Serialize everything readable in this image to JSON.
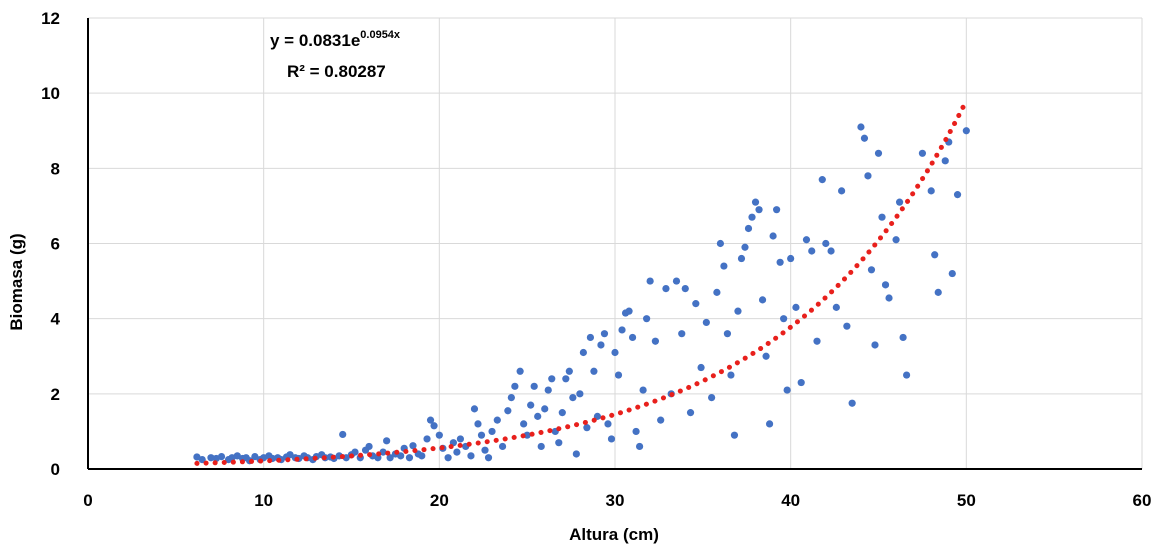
{
  "chart_data": {
    "type": "scatter",
    "xlabel": "Altura  (cm)",
    "ylabel": "Biomasa (g)",
    "xlim": [
      0,
      60
    ],
    "ylim": [
      0,
      12
    ],
    "x_ticks": [
      0,
      10,
      20,
      30,
      40,
      50,
      60
    ],
    "y_ticks": [
      0,
      2,
      4,
      6,
      8,
      10,
      12
    ],
    "grid": true,
    "legend": "none",
    "annotations": {
      "equation_prefix": "y = 0.0831e",
      "equation_exponent": "0.0954x",
      "r_squared": "R² = 0.80287"
    },
    "colors": {
      "points": "#4472c4",
      "trendline": "#e8201c",
      "grid": "#d9d9d9"
    },
    "trendline": {
      "type": "exponential",
      "a": 0.0831,
      "b": 0.0954,
      "x_range": [
        6.2,
        49.9
      ]
    },
    "series": [
      {
        "points": [
          [
            6.2,
            0.32
          ],
          [
            6.5,
            0.25
          ],
          [
            7,
            0.3
          ],
          [
            7.3,
            0.28
          ],
          [
            7.6,
            0.33
          ],
          [
            8,
            0.25
          ],
          [
            8.2,
            0.3
          ],
          [
            8.5,
            0.35
          ],
          [
            8.8,
            0.28
          ],
          [
            9,
            0.3
          ],
          [
            9.2,
            0.22
          ],
          [
            9.5,
            0.33
          ],
          [
            9.8,
            0.25
          ],
          [
            10,
            0.3
          ],
          [
            10.3,
            0.35
          ],
          [
            10.5,
            0.28
          ],
          [
            10.8,
            0.3
          ],
          [
            11,
            0.25
          ],
          [
            11.3,
            0.32
          ],
          [
            11.5,
            0.38
          ],
          [
            11.8,
            0.3
          ],
          [
            12,
            0.28
          ],
          [
            12.3,
            0.35
          ],
          [
            12.5,
            0.3
          ],
          [
            12.8,
            0.25
          ],
          [
            13,
            0.33
          ],
          [
            13.3,
            0.38
          ],
          [
            13.5,
            0.3
          ],
          [
            13.8,
            0.32
          ],
          [
            14,
            0.28
          ],
          [
            14.3,
            0.35
          ],
          [
            14.5,
            0.92
          ],
          [
            14.7,
            0.3
          ],
          [
            15,
            0.38
          ],
          [
            15.2,
            0.45
          ],
          [
            15.5,
            0.3
          ],
          [
            15.8,
            0.5
          ],
          [
            16,
            0.6
          ],
          [
            16.2,
            0.35
          ],
          [
            16.5,
            0.3
          ],
          [
            16.8,
            0.45
          ],
          [
            17,
            0.75
          ],
          [
            17.2,
            0.3
          ],
          [
            17.5,
            0.4
          ],
          [
            17.8,
            0.35
          ],
          [
            18,
            0.55
          ],
          [
            18.3,
            0.3
          ],
          [
            18.5,
            0.62
          ],
          [
            18.8,
            0.4
          ],
          [
            19,
            0.35
          ],
          [
            19.3,
            0.8
          ],
          [
            19.5,
            1.3
          ],
          [
            19.7,
            1.15
          ],
          [
            20,
            0.9
          ],
          [
            20.2,
            0.55
          ],
          [
            20.5,
            0.3
          ],
          [
            20.8,
            0.7
          ],
          [
            21,
            0.45
          ],
          [
            21.2,
            0.8
          ],
          [
            21.5,
            0.6
          ],
          [
            21.8,
            0.35
          ],
          [
            22,
            1.6
          ],
          [
            22.2,
            1.2
          ],
          [
            22.4,
            0.9
          ],
          [
            22.6,
            0.5
          ],
          [
            22.8,
            0.3
          ],
          [
            23,
            1.0
          ],
          [
            23.3,
            1.3
          ],
          [
            23.6,
            0.6
          ],
          [
            23.9,
            1.55
          ],
          [
            24.1,
            1.9
          ],
          [
            24.3,
            2.2
          ],
          [
            24.6,
            2.6
          ],
          [
            24.8,
            1.2
          ],
          [
            25,
            0.9
          ],
          [
            25.2,
            1.7
          ],
          [
            25.4,
            2.2
          ],
          [
            25.6,
            1.4
          ],
          [
            25.8,
            0.6
          ],
          [
            26,
            1.6
          ],
          [
            26.2,
            2.1
          ],
          [
            26.4,
            2.4
          ],
          [
            26.6,
            1.0
          ],
          [
            26.8,
            0.7
          ],
          [
            27,
            1.5
          ],
          [
            27.2,
            2.4
          ],
          [
            27.4,
            2.6
          ],
          [
            27.6,
            1.9
          ],
          [
            27.8,
            0.4
          ],
          [
            28,
            2.0
          ],
          [
            28.2,
            3.1
          ],
          [
            28.4,
            1.1
          ],
          [
            28.6,
            3.5
          ],
          [
            28.8,
            2.6
          ],
          [
            29,
            1.4
          ],
          [
            29.2,
            3.3
          ],
          [
            29.4,
            3.6
          ],
          [
            29.6,
            1.2
          ],
          [
            29.8,
            0.8
          ],
          [
            30,
            3.1
          ],
          [
            30.2,
            2.5
          ],
          [
            30.4,
            3.7
          ],
          [
            30.6,
            4.15
          ],
          [
            30.8,
            4.2
          ],
          [
            31,
            3.5
          ],
          [
            31.2,
            1.0
          ],
          [
            31.4,
            0.6
          ],
          [
            31.6,
            2.1
          ],
          [
            31.8,
            4.0
          ],
          [
            32,
            5.0
          ],
          [
            32.3,
            3.4
          ],
          [
            32.6,
            1.3
          ],
          [
            32.9,
            4.8
          ],
          [
            33.2,
            2.0
          ],
          [
            33.5,
            5.0
          ],
          [
            33.8,
            3.6
          ],
          [
            34,
            4.8
          ],
          [
            34.3,
            1.5
          ],
          [
            34.6,
            4.4
          ],
          [
            34.9,
            2.7
          ],
          [
            35.2,
            3.9
          ],
          [
            35.5,
            1.9
          ],
          [
            35.8,
            4.7
          ],
          [
            36,
            6.0
          ],
          [
            36.2,
            5.4
          ],
          [
            36.4,
            3.6
          ],
          [
            36.6,
            2.5
          ],
          [
            36.8,
            0.9
          ],
          [
            37,
            4.2
          ],
          [
            37.2,
            5.6
          ],
          [
            37.4,
            5.9
          ],
          [
            37.6,
            6.4
          ],
          [
            37.8,
            6.7
          ],
          [
            38,
            7.1
          ],
          [
            38.2,
            6.9
          ],
          [
            38.4,
            4.5
          ],
          [
            38.6,
            3.0
          ],
          [
            38.8,
            1.2
          ],
          [
            39,
            6.2
          ],
          [
            39.2,
            6.9
          ],
          [
            39.4,
            5.5
          ],
          [
            39.6,
            4.0
          ],
          [
            39.8,
            2.1
          ],
          [
            40,
            5.6
          ],
          [
            40.3,
            4.3
          ],
          [
            40.6,
            2.3
          ],
          [
            40.9,
            6.1
          ],
          [
            41.2,
            5.8
          ],
          [
            41.5,
            3.4
          ],
          [
            41.8,
            7.7
          ],
          [
            42,
            6.0
          ],
          [
            42.3,
            5.8
          ],
          [
            42.6,
            4.3
          ],
          [
            42.9,
            7.4
          ],
          [
            43.2,
            3.8
          ],
          [
            43.5,
            1.75
          ],
          [
            44,
            9.1
          ],
          [
            44.2,
            8.8
          ],
          [
            44.4,
            7.8
          ],
          [
            44.6,
            5.3
          ],
          [
            44.8,
            3.3
          ],
          [
            45,
            8.4
          ],
          [
            45.2,
            6.7
          ],
          [
            45.4,
            4.9
          ],
          [
            45.6,
            4.55
          ],
          [
            46,
            6.1
          ],
          [
            46.2,
            7.1
          ],
          [
            46.4,
            3.5
          ],
          [
            46.6,
            2.5
          ],
          [
            47.5,
            8.4
          ],
          [
            48,
            7.4
          ],
          [
            48.2,
            5.7
          ],
          [
            48.4,
            4.7
          ],
          [
            48.8,
            8.2
          ],
          [
            49,
            8.7
          ],
          [
            49.2,
            5.2
          ],
          [
            49.5,
            7.3
          ],
          [
            50,
            9.0
          ]
        ]
      }
    ]
  }
}
